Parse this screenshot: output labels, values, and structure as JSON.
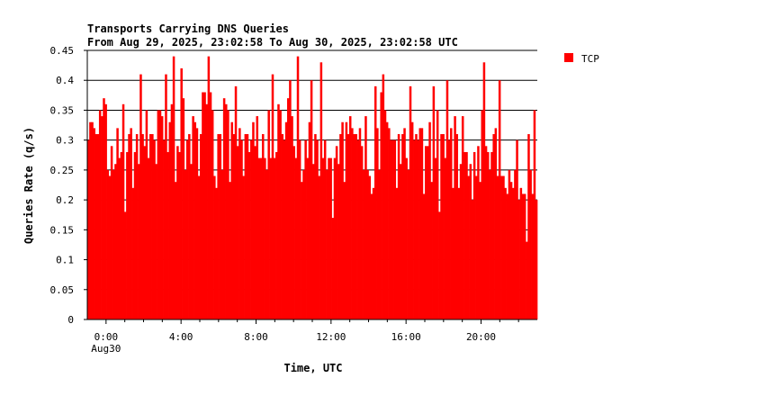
{
  "chart_data": {
    "type": "bar",
    "title": "Transports Carrying DNS Queries",
    "subtitle": "From Aug 29, 2025, 23:02:58 To Aug 30, 2025, 23:02:58 UTC",
    "xlabel": "Time, UTC",
    "ylabel": "Queries Rate (q/s)",
    "ylim": [
      0,
      0.45
    ],
    "xlim_hours": [
      -1,
      23
    ],
    "yticks": [
      "0",
      "0.05",
      "0.1",
      "0.15",
      "0.2",
      "0.25",
      "0.3",
      "0.35",
      "0.4",
      "0.45"
    ],
    "xticks": [
      {
        "hour": 0,
        "label": "0:00",
        "sublabel": "Aug30"
      },
      {
        "hour": 4,
        "label": "4:00",
        "sublabel": ""
      },
      {
        "hour": 8,
        "label": "8:00",
        "sublabel": ""
      },
      {
        "hour": 12,
        "label": "12:00",
        "sublabel": ""
      },
      {
        "hour": 16,
        "label": "16:00",
        "sublabel": ""
      },
      {
        "hour": 20,
        "label": "20:00",
        "sublabel": ""
      }
    ],
    "grid": true,
    "legend_position": "right",
    "series": [
      {
        "name": "TCP",
        "color": "#ff0000",
        "values": [
          0.3,
          0.33,
          0.33,
          0.32,
          0.31,
          0.31,
          0.35,
          0.34,
          0.37,
          0.36,
          0.25,
          0.24,
          0.29,
          0.25,
          0.26,
          0.32,
          0.27,
          0.28,
          0.36,
          0.18,
          0.28,
          0.31,
          0.32,
          0.22,
          0.28,
          0.31,
          0.26,
          0.41,
          0.31,
          0.29,
          0.35,
          0.27,
          0.31,
          0.31,
          0.3,
          0.26,
          0.35,
          0.35,
          0.34,
          0.3,
          0.41,
          0.28,
          0.33,
          0.36,
          0.44,
          0.23,
          0.29,
          0.28,
          0.42,
          0.37,
          0.25,
          0.3,
          0.31,
          0.26,
          0.34,
          0.33,
          0.32,
          0.24,
          0.31,
          0.38,
          0.38,
          0.36,
          0.44,
          0.38,
          0.35,
          0.24,
          0.22,
          0.31,
          0.31,
          0.25,
          0.37,
          0.36,
          0.35,
          0.23,
          0.33,
          0.31,
          0.39,
          0.29,
          0.32,
          0.3,
          0.24,
          0.31,
          0.31,
          0.28,
          0.3,
          0.33,
          0.29,
          0.34,
          0.27,
          0.27,
          0.31,
          0.27,
          0.25,
          0.35,
          0.27,
          0.41,
          0.27,
          0.28,
          0.36,
          0.35,
          0.31,
          0.3,
          0.33,
          0.37,
          0.4,
          0.34,
          0.29,
          0.27,
          0.44,
          0.3,
          0.23,
          0.25,
          0.3,
          0.27,
          0.33,
          0.4,
          0.26,
          0.31,
          0.3,
          0.24,
          0.43,
          0.27,
          0.3,
          0.25,
          0.27,
          0.27,
          0.17,
          0.27,
          0.29,
          0.26,
          0.31,
          0.33,
          0.23,
          0.33,
          0.31,
          0.34,
          0.32,
          0.31,
          0.31,
          0.3,
          0.32,
          0.29,
          0.25,
          0.34,
          0.25,
          0.24,
          0.21,
          0.22,
          0.39,
          0.32,
          0.25,
          0.38,
          0.41,
          0.35,
          0.33,
          0.32,
          0.3,
          0.3,
          0.3,
          0.22,
          0.31,
          0.26,
          0.31,
          0.32,
          0.27,
          0.25,
          0.39,
          0.33,
          0.3,
          0.31,
          0.3,
          0.32,
          0.32,
          0.21,
          0.29,
          0.29,
          0.33,
          0.23,
          0.39,
          0.27,
          0.35,
          0.18,
          0.31,
          0.31,
          0.27,
          0.4,
          0.3,
          0.32,
          0.22,
          0.34,
          0.31,
          0.22,
          0.26,
          0.34,
          0.28,
          0.28,
          0.24,
          0.26,
          0.2,
          0.28,
          0.24,
          0.29,
          0.23,
          0.35,
          0.43,
          0.29,
          0.28,
          0.25,
          0.28,
          0.31,
          0.32,
          0.24,
          0.4,
          0.24,
          0.24,
          0.22,
          0.21,
          0.25,
          0.23,
          0.22,
          0.25,
          0.3,
          0.2,
          0.22,
          0.21,
          0.21,
          0.13,
          0.31,
          0.25,
          0.21,
          0.35,
          0.2
        ]
      }
    ]
  }
}
